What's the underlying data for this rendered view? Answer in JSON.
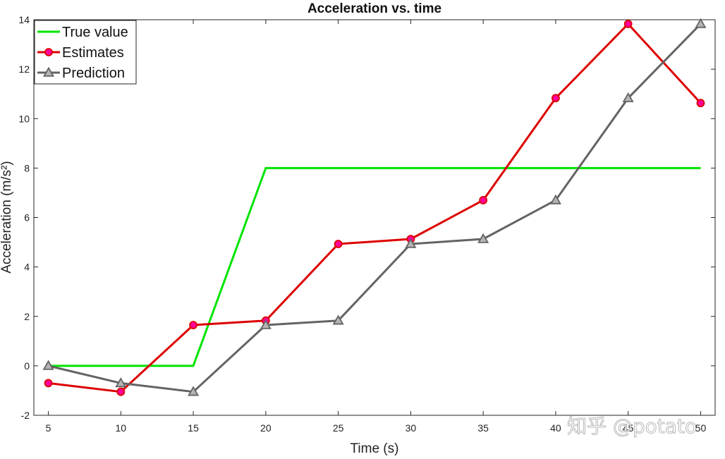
{
  "chart_data": {
    "type": "line",
    "title": "Acceleration vs. time",
    "xlabel": "Time (s)",
    "ylabel": "Acceleration (m/s²)",
    "xlim": [
      4,
      51
    ],
    "ylim": [
      -2,
      14
    ],
    "xticks": [
      5,
      10,
      15,
      20,
      25,
      30,
      35,
      40,
      45,
      50
    ],
    "yticks": [
      -2,
      0,
      2,
      4,
      6,
      8,
      10,
      12,
      14
    ],
    "grid": false,
    "legend_position": "top-left",
    "series": [
      {
        "name": "True value",
        "color": "#00e400",
        "marker": "none",
        "x": [
          5,
          10,
          15,
          20,
          25,
          30,
          35,
          40,
          45,
          50
        ],
        "y": [
          0,
          0,
          0,
          8,
          8,
          8,
          8,
          8,
          8,
          8
        ]
      },
      {
        "name": "Estimates",
        "color": "#dd0000",
        "marker": "circle",
        "marker_fill": "#ff0099",
        "x": [
          5,
          10,
          15,
          20,
          25,
          30,
          35,
          40,
          45,
          50
        ],
        "y": [
          -0.7,
          -1.05,
          1.65,
          1.83,
          4.93,
          5.13,
          6.7,
          10.83,
          13.83,
          10.63
        ]
      },
      {
        "name": "Prediction",
        "color": "#646464",
        "marker": "triangle",
        "marker_fill": "#b4b4b4",
        "x": [
          5,
          10,
          15,
          20,
          25,
          30,
          35,
          40,
          45,
          50
        ],
        "y": [
          0,
          -0.7,
          -1.05,
          1.65,
          1.83,
          4.93,
          5.13,
          6.7,
          10.83,
          13.83
        ]
      }
    ]
  },
  "watermark": "知乎 @potato"
}
